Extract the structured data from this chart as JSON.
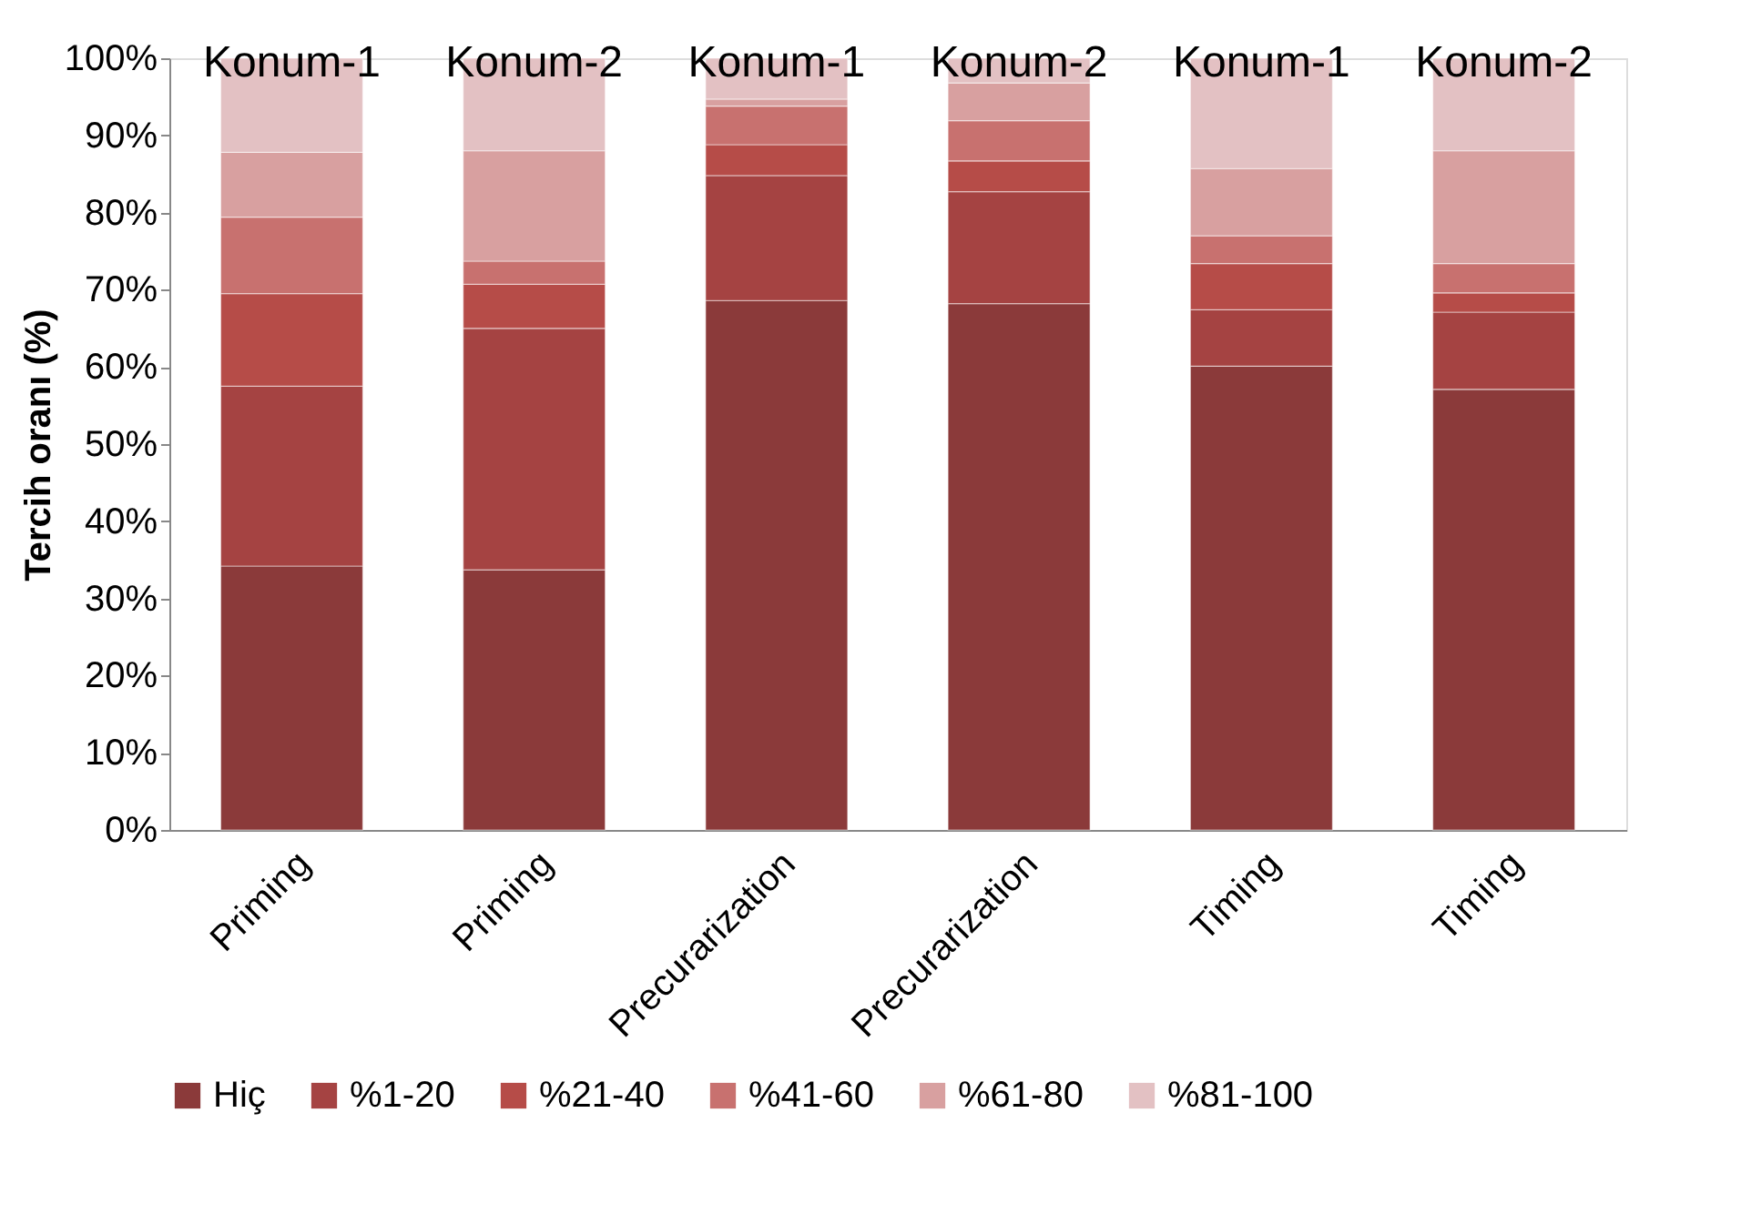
{
  "chart_data": {
    "type": "bar",
    "stacked": true,
    "ylabel": "Tercih oranı (%)",
    "categories": [
      "Priming",
      "Priming",
      "Precurarization",
      "Precurarization",
      "Timing",
      "Timing"
    ],
    "series": [
      {
        "name": "Hiç",
        "color": "#8b3a3a",
        "values": [
          34.2,
          33.7,
          68.6,
          68.2,
          60.1,
          57.1
        ]
      },
      {
        "name": "%1-20",
        "color": "#a54342",
        "values": [
          23.3,
          31.3,
          16.2,
          14.5,
          7.3,
          10.0
        ]
      },
      {
        "name": "%21-40",
        "color": "#b64c48",
        "values": [
          12.0,
          5.7,
          4.0,
          4.0,
          6.0,
          2.5
        ]
      },
      {
        "name": "%41-60",
        "color": "#c8716f",
        "values": [
          9.9,
          3.0,
          5.0,
          5.2,
          3.6,
          3.8
        ]
      },
      {
        "name": "%61-80",
        "color": "#d8a0a0",
        "values": [
          8.4,
          14.3,
          0.9,
          4.9,
          8.7,
          14.6
        ]
      },
      {
        "name": "%81-100",
        "color": "#e3c1c3",
        "values": [
          12.2,
          12.0,
          5.3,
          3.2,
          14.3,
          12.0
        ]
      }
    ],
    "annotations": [
      "Konum-1",
      "Konum-2",
      "Konum-1",
      "Konum-2",
      "Konum-1",
      "Konum-2"
    ],
    "ylim": [
      0,
      100
    ],
    "yticks": [
      {
        "value": 0,
        "label": "0%"
      },
      {
        "value": 10,
        "label": "10%"
      },
      {
        "value": 20,
        "label": "20%"
      },
      {
        "value": 30,
        "label": "30%"
      },
      {
        "value": 40,
        "label": "40%"
      },
      {
        "value": 50,
        "label": "50%"
      },
      {
        "value": 60,
        "label": "60%"
      },
      {
        "value": 70,
        "label": "70%"
      },
      {
        "value": 80,
        "label": "80%"
      },
      {
        "value": 90,
        "label": "90%"
      },
      {
        "value": 100,
        "label": "100%"
      }
    ],
    "grid": false,
    "legend": "bottom"
  }
}
